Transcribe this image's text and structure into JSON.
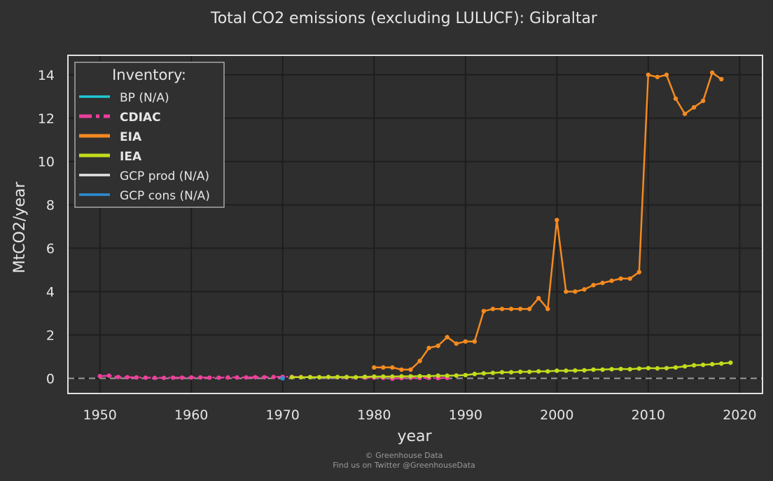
{
  "chart_data": {
    "type": "line",
    "title": "Total CO2 emissions (excluding LULUCF): Gibraltar",
    "xlabel": "year",
    "ylabel": "MtCO2/year",
    "xlim": [
      1946.5,
      2022.5
    ],
    "ylim": [
      -0.7,
      14.9
    ],
    "xticks": [
      "1950",
      "1960",
      "1970",
      "1980",
      "1990",
      "2000",
      "2010",
      "2020"
    ],
    "yticks": [
      "0",
      "2",
      "4",
      "6",
      "8",
      "10",
      "12",
      "14"
    ],
    "grid": true,
    "legend_position": "top-left",
    "legend_title": "Inventory:",
    "series": [
      {
        "name": "BP (N/A)",
        "color": "#1ec8d6",
        "bold": false,
        "style": "solid",
        "x": [],
        "y": []
      },
      {
        "name": "CDIAC",
        "color": "#ee3f9b",
        "bold": true,
        "style": "dashdot",
        "x": [
          1950,
          1951,
          1952,
          1953,
          1954,
          1955,
          1956,
          1957,
          1958,
          1959,
          1960,
          1961,
          1962,
          1963,
          1964,
          1965,
          1966,
          1967,
          1968,
          1969,
          1970,
          1971,
          1972,
          1973,
          1974,
          1975,
          1976,
          1977,
          1978,
          1979,
          1980,
          1981,
          1982,
          1983,
          1984,
          1985,
          1986,
          1987,
          1988
        ],
        "y": [
          0.1,
          0.12,
          0.06,
          0.05,
          0.04,
          0.03,
          0.02,
          0.02,
          0.03,
          0.03,
          0.04,
          0.04,
          0.03,
          0.03,
          0.04,
          0.04,
          0.04,
          0.05,
          0.05,
          0.06,
          0.07,
          0.07,
          0.06,
          0.06,
          0.05,
          0.05,
          0.05,
          0.04,
          0.04,
          0.03,
          0.03,
          0.02,
          -0.02,
          0.01,
          0.02,
          0.02,
          0.02,
          0.01,
          0.02
        ]
      },
      {
        "name": "EIA",
        "color": "#f58a1f",
        "bold": true,
        "style": "solid",
        "x": [
          1980,
          1981,
          1982,
          1983,
          1984,
          1985,
          1986,
          1987,
          1988,
          1989,
          1990,
          1991,
          1992,
          1993,
          1994,
          1995,
          1996,
          1997,
          1998,
          1999,
          2000,
          2001,
          2002,
          2003,
          2004,
          2005,
          2006,
          2007,
          2008,
          2009,
          2010,
          2011,
          2012,
          2013,
          2014,
          2015,
          2016,
          2017,
          2018
        ],
        "y": [
          0.5,
          0.5,
          0.5,
          0.4,
          0.4,
          0.8,
          1.4,
          1.5,
          1.9,
          1.6,
          1.7,
          1.7,
          3.1,
          3.2,
          3.2,
          3.2,
          3.2,
          3.2,
          3.7,
          3.2,
          7.3,
          4.0,
          4.0,
          4.1,
          4.3,
          4.4,
          4.5,
          4.6,
          4.6,
          4.9,
          14.0,
          13.9,
          14.0,
          12.9,
          12.2,
          12.5,
          12.8,
          14.1,
          13.8
        ]
      },
      {
        "name": "IEA",
        "color": "#c2dc1c",
        "bold": true,
        "style": "solid",
        "x": [
          1971,
          1972,
          1973,
          1974,
          1975,
          1976,
          1977,
          1978,
          1979,
          1980,
          1981,
          1982,
          1983,
          1984,
          1985,
          1986,
          1987,
          1988,
          1989,
          1990,
          1991,
          1992,
          1993,
          1994,
          1995,
          1996,
          1997,
          1998,
          1999,
          2000,
          2001,
          2002,
          2003,
          2004,
          2005,
          2006,
          2007,
          2008,
          2009,
          2010,
          2011,
          2012,
          2013,
          2014,
          2015,
          2016,
          2017,
          2018,
          2019
        ],
        "y": [
          0.05,
          0.05,
          0.05,
          0.05,
          0.06,
          0.06,
          0.06,
          0.05,
          0.07,
          0.08,
          0.08,
          0.08,
          0.09,
          0.09,
          0.1,
          0.1,
          0.12,
          0.12,
          0.13,
          0.15,
          0.2,
          0.23,
          0.25,
          0.28,
          0.28,
          0.3,
          0.3,
          0.32,
          0.32,
          0.35,
          0.35,
          0.36,
          0.37,
          0.4,
          0.4,
          0.42,
          0.43,
          0.42,
          0.45,
          0.47,
          0.46,
          0.47,
          0.5,
          0.55,
          0.6,
          0.62,
          0.65,
          0.68,
          0.72
        ]
      },
      {
        "name": "GCP prod (N/A)",
        "color": "#e4e4e4",
        "bold": false,
        "style": "solid",
        "x": [],
        "y": []
      },
      {
        "name": "GCP cons (N/A)",
        "color": "#2a8fd6",
        "bold": false,
        "style": "solid",
        "x": [
          1970
        ],
        "y": [
          0.0
        ]
      }
    ]
  },
  "credits": {
    "line1": "© Greenhouse Data",
    "line2": "Find us on Twitter @GreenhouseData"
  }
}
